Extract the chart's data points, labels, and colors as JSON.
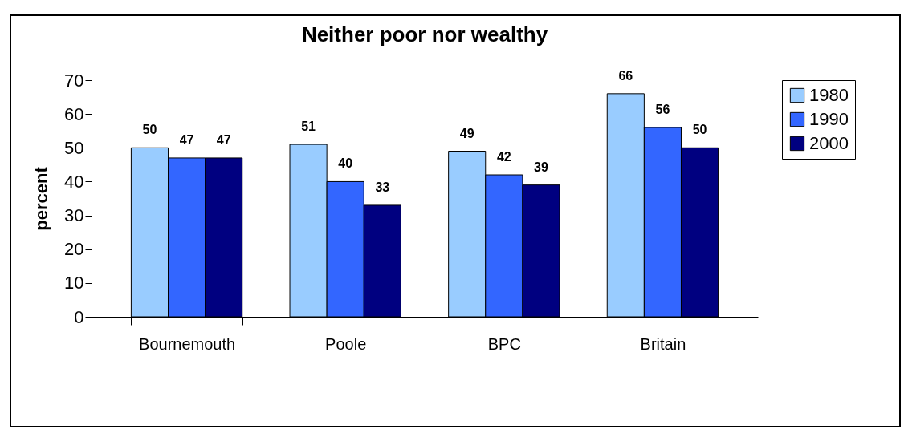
{
  "chart_data": {
    "type": "bar",
    "title": "Neither poor nor wealthy",
    "ylabel": "percent",
    "categories": [
      "Bournemouth",
      "Poole",
      "BPC",
      "Britain"
    ],
    "series": [
      {
        "name": "1980",
        "color": "#99ccff",
        "values": [
          50,
          51,
          49,
          66
        ]
      },
      {
        "name": "1990",
        "color": "#3366ff",
        "values": [
          47,
          40,
          42,
          56
        ]
      },
      {
        "name": "2000",
        "color": "#000080",
        "values": [
          47,
          33,
          39,
          50
        ]
      }
    ],
    "ylim": [
      0,
      70
    ],
    "yticks": [
      0,
      10,
      20,
      30,
      40,
      50,
      60,
      70
    ],
    "grid": false,
    "legend": "right",
    "data_labels": true
  }
}
